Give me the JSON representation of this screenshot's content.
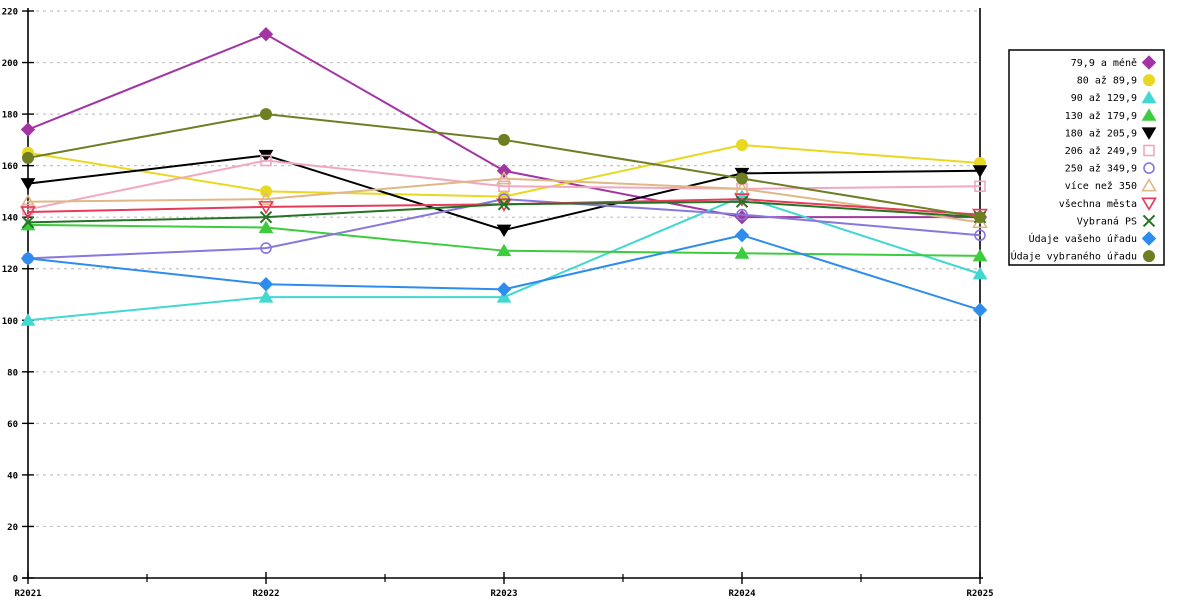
{
  "chart_data": {
    "type": "line",
    "title": "",
    "xlabel": "",
    "ylabel": "",
    "x_categories": [
      "R2021",
      "R2022",
      "R2023",
      "R2024",
      "R2025"
    ],
    "ylim": [
      0,
      220
    ],
    "y_tick_step": 20,
    "grid": "horizontal-dashed",
    "legend_position": "right",
    "minor_x_ticks_between_categories": true,
    "series": [
      {
        "name": "79,9 a méně",
        "color": "#a335a3",
        "marker": "diamond",
        "filled": true,
        "values": [
          174,
          211,
          158,
          140,
          140
        ]
      },
      {
        "name": "80 až 89,9",
        "color": "#e8d822",
        "marker": "circle",
        "filled": true,
        "values": [
          165,
          150,
          148,
          168,
          161
        ]
      },
      {
        "name": "90 až 129,9",
        "color": "#40d8d0",
        "marker": "triangle-up",
        "filled": true,
        "values": [
          100,
          109,
          109,
          148,
          118
        ]
      },
      {
        "name": "130 až 179,9",
        "color": "#3dcc3d",
        "marker": "triangle-up",
        "filled": true,
        "values": [
          137,
          136,
          127,
          126,
          125
        ]
      },
      {
        "name": "180 až 205,9",
        "color": "#000000",
        "marker": "triangle-down",
        "filled": true,
        "values": [
          153,
          164,
          135,
          157,
          158
        ]
      },
      {
        "name": "206 až 249,9",
        "color": "#f0a8c0",
        "marker": "square",
        "filled": false,
        "values": [
          143,
          162,
          152,
          151,
          152
        ]
      },
      {
        "name": "250 až 349,9",
        "color": "#8877dd",
        "marker": "circle",
        "filled": false,
        "values": [
          124,
          128,
          147,
          141,
          133
        ]
      },
      {
        "name": "více než 350",
        "color": "#deb887",
        "marker": "triangle-up",
        "filled": false,
        "values": [
          146,
          147,
          155,
          151,
          138
        ]
      },
      {
        "name": "všechna města",
        "color": "#e83a5a",
        "marker": "triangle-down",
        "filled": false,
        "values": [
          142,
          144,
          145,
          147,
          141
        ]
      },
      {
        "name": "Vybraná PS",
        "color": "#267326",
        "marker": "x",
        "filled": false,
        "values": [
          138,
          140,
          145,
          146,
          140
        ]
      },
      {
        "name": "Údaje vašeho úřadu",
        "color": "#2e8cee",
        "marker": "diamond",
        "filled": true,
        "values": [
          124,
          114,
          112,
          133,
          104
        ]
      },
      {
        "name": "Údaje vybraného úřadu",
        "color": "#6e7f23",
        "marker": "circle",
        "filled": true,
        "values": [
          163,
          180,
          170,
          155,
          140
        ]
      }
    ],
    "y_tick_labels": [
      "0",
      "20",
      "40",
      "60",
      "80",
      "100",
      "120",
      "140",
      "160",
      "180",
      "200",
      "220"
    ]
  },
  "colors": {
    "background": "#ffffff",
    "grid": "#c4c4c4",
    "axis": "#000000",
    "legend_border": "#000000",
    "legend_background": "#ffffff"
  }
}
